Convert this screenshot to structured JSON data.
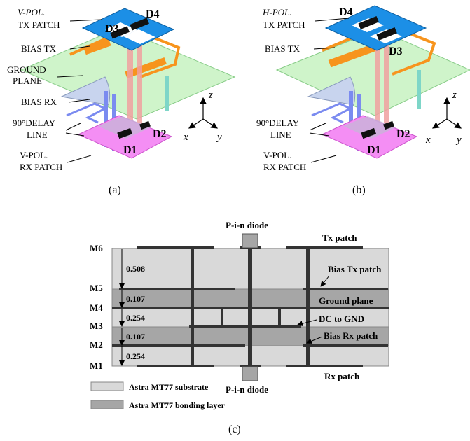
{
  "panel_a": {
    "caption": "(a)",
    "tx_patch_pol": "V-POL.",
    "tx_patch_label": "TX PATCH",
    "bias_tx": "BIAS TX",
    "ground_1": "GROUND",
    "ground_2": "PLANE",
    "bias_rx": "BIAS RX",
    "delay_1": "90°DELAY",
    "delay_2": "LINE",
    "rx_patch_pol": "V-POL.",
    "rx_patch_label": "RX PATCH",
    "d1": "D1",
    "d2": "D2",
    "d3": "D3",
    "d4": "D4",
    "axis_x": "x",
    "axis_y": "y",
    "axis_z": "z"
  },
  "panel_b": {
    "caption": "(b)",
    "tx_patch_pol": "H-POL.",
    "tx_patch_label": "TX PATCH",
    "bias_tx": "BIAS TX",
    "delay_1": "90°DELAY",
    "delay_2": "LINE",
    "rx_patch_pol": "V-POL.",
    "rx_patch_label": "RX PATCH",
    "d1": "D1",
    "d2": "D2",
    "d3": "D3",
    "d4": "D4",
    "axis_x": "x",
    "axis_y": "y",
    "axis_z": "z"
  },
  "panel_c": {
    "caption": "(c)",
    "layers": [
      "M6",
      "M5",
      "M4",
      "M3",
      "M2",
      "M1"
    ],
    "thicknesses": [
      "0.508",
      "0.107",
      "0.254",
      "0.107",
      "0.254"
    ],
    "labels": {
      "pin_top": "P-i-n diode",
      "pin_bottom": "P-i-n diode",
      "tx_patch": "Tx patch",
      "bias_tx_patch": "Bias Tx patch",
      "ground_plane": "Ground plane",
      "dc_to_gnd": "DC to GND",
      "bias_rx_patch": "Bias Rx patch",
      "rx_patch": "Rx patch"
    },
    "legend": {
      "substrate": "Astra MT77 substrate",
      "bonding": "Astra MT77 bonding layer"
    }
  },
  "colors": {
    "patch_blue": "#1c8fe6",
    "bias_orange": "#f7941d",
    "ground_green": "#b8f0b0",
    "rx_magenta": "#f48ef4",
    "substrate": "#d9d9d9",
    "bonding": "#a6a6a6"
  }
}
